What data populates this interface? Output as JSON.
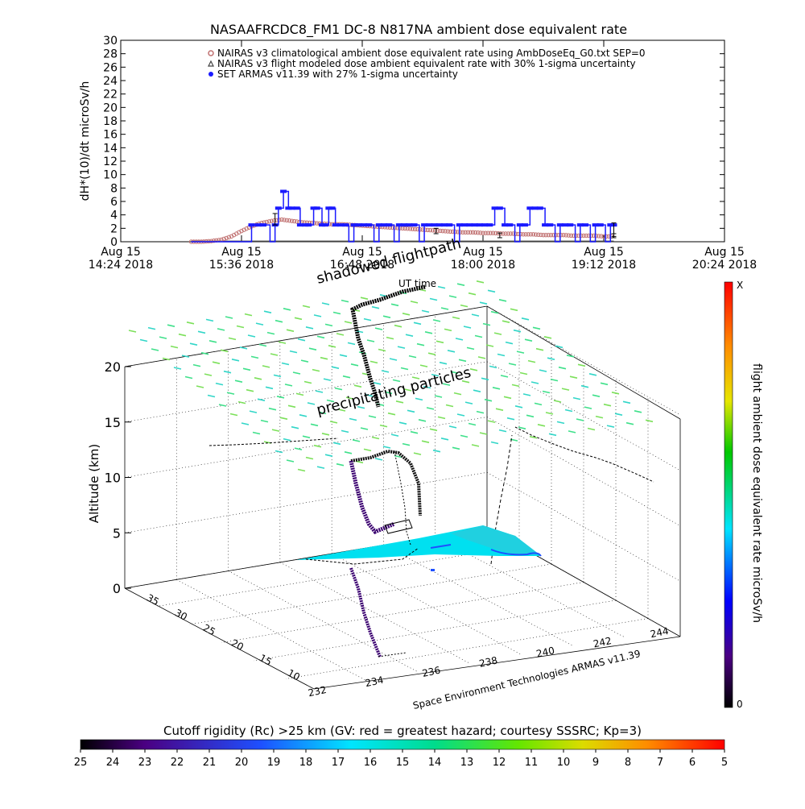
{
  "page": {
    "title": "NASAAFRCDC8_FM1 DC-8    N817NA ambient dose equivalent rate",
    "credit": "Space Environment Technologies ARMAS v11.39"
  },
  "chart_data": [
    {
      "type": "line",
      "title": "NASAAFRCDC8_FM1 DC-8    N817NA ambient dose equivalent rate",
      "ylabel": "dH*(10)/dt microSv/h",
      "ylim": [
        0,
        30
      ],
      "yticks": [
        "0",
        "2",
        "4",
        "6",
        "8",
        "10",
        "12",
        "14",
        "16",
        "18",
        "20",
        "22",
        "24",
        "26",
        "28",
        "30"
      ],
      "xlim_minutes": [
        864,
        1224
      ],
      "xticks": [
        {
          "line1": "Aug 15",
          "line2": "14:24 2018",
          "t": 864
        },
        {
          "line1": "Aug 15",
          "line2": "15:36 2018",
          "t": 936
        },
        {
          "line1": "Aug 15",
          "line2": "16:48 2018",
          "t": 1008
        },
        {
          "line1": "Aug 15",
          "line2": "18:00 2018",
          "t": 1080
        },
        {
          "line1": "Aug 15",
          "line2": "19:12 2018",
          "t": 1152
        },
        {
          "line1": "Aug 15",
          "line2": "20:24 2018",
          "t": 1224
        }
      ],
      "legend_position": "top",
      "legend": [
        {
          "label": "NAIRAS v3 climatological ambient dose equivalent rate using AmbDoseEq_G0.txt SEP=0",
          "color": "#c07070"
        },
        {
          "label": "NAIRAS v3 flight modeled dose ambient equivalent rate with 30% 1-sigma uncertainty",
          "color": "#444444"
        },
        {
          "label": "SET ARMAS v11.39 with 27% 1-sigma uncertainty",
          "color": "#1a1aff"
        }
      ],
      "series": [
        {
          "name": "NAIRAS v3 climatological ambient dose equivalent rate using AmbDoseEq_G0.txt SEP=0",
          "color": "#c07070",
          "x": [
            906,
            912,
            918,
            924,
            930,
            936,
            942,
            948,
            954,
            960,
            966,
            972,
            978,
            984,
            990,
            996,
            1002,
            1008,
            1014,
            1020,
            1026,
            1032,
            1038,
            1044,
            1050,
            1056,
            1062,
            1068,
            1074,
            1080,
            1086,
            1092,
            1098,
            1104,
            1110,
            1116,
            1122,
            1128,
            1134,
            1140,
            1146,
            1152,
            1158
          ],
          "y": [
            0.0,
            0.0,
            0.1,
            0.3,
            0.8,
            1.6,
            2.3,
            2.8,
            3.1,
            3.3,
            3.1,
            2.9,
            2.8,
            2.7,
            2.6,
            2.6,
            2.5,
            2.4,
            2.3,
            2.2,
            2.1,
            2.0,
            1.9,
            1.8,
            1.7,
            1.6,
            1.5,
            1.4,
            1.4,
            1.3,
            1.3,
            1.2,
            1.2,
            1.1,
            1.1,
            1.0,
            1.0,
            1.0,
            0.9,
            0.9,
            0.9,
            0.8,
            0.8
          ]
        },
        {
          "name": "NAIRAS v3 flight modeled dose ambient equivalent rate with 30% 1-sigma uncertainty",
          "color": "#444444",
          "x": [
            906,
            1158
          ],
          "y": [
            0.05,
            0.05
          ]
        },
        {
          "name": "SET ARMAS v11.39 with 27% 1-sigma uncertainty",
          "color": "#1a1aff",
          "x": [
            906,
            922,
            939,
            942,
            946,
            949,
            953,
            956,
            958,
            961,
            964,
            966,
            969,
            971,
            974,
            976,
            979,
            981,
            984,
            986,
            988,
            990,
            992,
            995,
            998,
            1000,
            1003,
            1006,
            1009,
            1012,
            1015,
            1018,
            1021,
            1024,
            1027,
            1030,
            1033,
            1036,
            1039,
            1042,
            1045,
            1048,
            1051,
            1054,
            1057,
            1060,
            1063,
            1066,
            1069,
            1072,
            1075,
            1078,
            1081,
            1084,
            1087,
            1090,
            1093,
            1096,
            1099,
            1102,
            1105,
            1108,
            1111,
            1114,
            1117,
            1120,
            1123,
            1126,
            1129,
            1132,
            1135,
            1138,
            1141,
            1144,
            1147,
            1150,
            1153,
            1156,
            1158
          ],
          "y": [
            0,
            0,
            0,
            2.5,
            2.5,
            2.5,
            0,
            2.5,
            5.0,
            7.5,
            5.0,
            5.0,
            5.0,
            2.5,
            2.5,
            2.5,
            5.0,
            5.0,
            2.5,
            2.5,
            5.0,
            5.0,
            2.5,
            2.5,
            2.5,
            0,
            2.5,
            2.5,
            2.5,
            2.5,
            0,
            2.5,
            2.5,
            2.5,
            0,
            2.5,
            2.5,
            2.5,
            2.5,
            0,
            2.5,
            2.5,
            2.5,
            2.5,
            2.5,
            2.5,
            0,
            2.5,
            2.5,
            2.5,
            2.5,
            2.5,
            2.5,
            2.5,
            5.0,
            5.0,
            2.5,
            2.5,
            0,
            2.5,
            2.5,
            5.0,
            5.0,
            5.0,
            2.5,
            2.5,
            0,
            2.5,
            2.5,
            2.5,
            0,
            2.5,
            2.5,
            0,
            2.5,
            2.5,
            0,
            2.5,
            2.5
          ]
        }
      ]
    },
    {
      "type": "scatter",
      "zlabel": "Altitude (km)",
      "zlim": [
        0,
        20
      ],
      "zticks": [
        "0",
        "5",
        "10",
        "15",
        "20"
      ],
      "lat_ticks": [
        "10",
        "15",
        "20",
        "25",
        "30",
        "35"
      ],
      "lon_ticks": [
        "232",
        "234",
        "236",
        "238",
        "240",
        "242",
        "244"
      ],
      "annotations": [
        "shadowed flightpath",
        "UT time",
        "precipitating particles"
      ],
      "colorbar_right": {
        "label": "flight ambient dose equivalent rate microSv/h",
        "top": "X",
        "bottom": "0"
      },
      "colorbar_bottom": {
        "label": "Cutoff rigidity (Rc) >25 km (GV: red = greatest hazard; courtesy SSSRC; Kp=3)",
        "ticks": [
          "25",
          "24",
          "23",
          "22",
          "21",
          "20",
          "19",
          "18",
          "17",
          "16",
          "15",
          "14",
          "13",
          "12",
          "11",
          "10",
          "9",
          "8",
          "7",
          "6",
          "5"
        ]
      }
    }
  ]
}
